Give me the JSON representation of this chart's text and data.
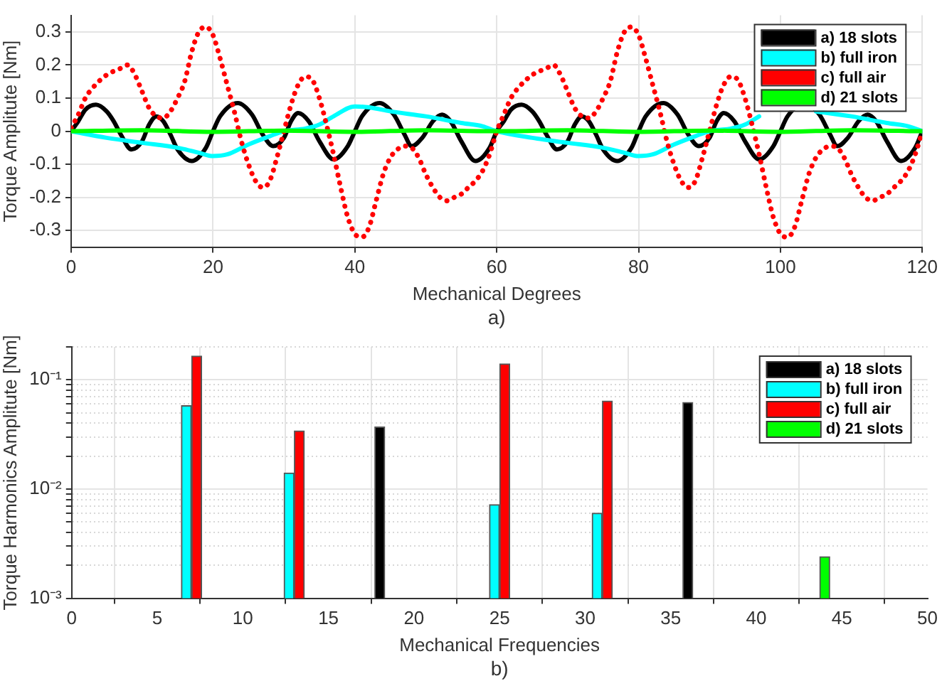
{
  "chart_data": [
    {
      "type": "line",
      "xlabel": "Mechanical Degrees",
      "ylabel": "Torque Amplitute [Nm]",
      "annotations": [
        "a)"
      ],
      "xlim": [
        0,
        120
      ],
      "xticks": [
        0,
        20,
        40,
        60,
        80,
        100,
        120
      ],
      "ylim": [
        -0.35,
        0.35
      ],
      "yticks": [
        -0.3,
        -0.2,
        -0.1,
        0,
        0.1,
        0.2,
        0.3
      ],
      "grid": true,
      "legend": "top right",
      "marker": "none",
      "series": [
        {
          "name": "a) 18 slots",
          "color": "#000000",
          "x": [
            0,
            1,
            2,
            3.5,
            5,
            6,
            7,
            8.5,
            10,
            11,
            12,
            13,
            14,
            15,
            17,
            19,
            20,
            21,
            23.5,
            25.5,
            27,
            28.5,
            30,
            31,
            32,
            33.5,
            35,
            37,
            39,
            40,
            41,
            43.5,
            45.5,
            47,
            48,
            49.5,
            51,
            52.3,
            53.5,
            55,
            57,
            59,
            60,
            61,
            62,
            63.5,
            65,
            66,
            67,
            68.5,
            70,
            71,
            72,
            73,
            74,
            75,
            77,
            79,
            80,
            81,
            83.5,
            85.5,
            87,
            88.5,
            90,
            91,
            92,
            93.5,
            95,
            97,
            99,
            100,
            101,
            103.5,
            105.5,
            107,
            108,
            109.5,
            111,
            112.3,
            113.5,
            115,
            117,
            119,
            120
          ],
          "values": [
            0,
            0.03,
            0.065,
            0.08,
            0.06,
            0.03,
            -0.01,
            -0.055,
            -0.03,
            0.02,
            0.045,
            0.03,
            -0.01,
            -0.055,
            -0.09,
            -0.05,
            0,
            0.045,
            0.085,
            0.05,
            -0.01,
            -0.045,
            -0.02,
            0.03,
            0.055,
            0.03,
            -0.03,
            -0.085,
            -0.045,
            0,
            0.045,
            0.085,
            0.05,
            -0.01,
            -0.045,
            -0.02,
            0.03,
            0.05,
            0.03,
            -0.03,
            -0.09,
            -0.05,
            0,
            0.03,
            0.065,
            0.08,
            0.06,
            0.03,
            -0.01,
            -0.055,
            -0.03,
            0.02,
            0.045,
            0.03,
            -0.01,
            -0.055,
            -0.09,
            -0.05,
            0,
            0.045,
            0.085,
            0.05,
            -0.01,
            -0.045,
            -0.02,
            0.03,
            0.055,
            0.03,
            -0.03,
            -0.085,
            -0.045,
            0,
            0.045,
            0.085,
            0.05,
            -0.01,
            -0.045,
            -0.02,
            0.03,
            0.05,
            0.03,
            -0.03,
            -0.09,
            -0.05,
            0
          ]
        },
        {
          "name": "b) full iron",
          "color": "#00ffff",
          "x": [
            0,
            5,
            10,
            15,
            18,
            20,
            22,
            25,
            28,
            30,
            33,
            35,
            37,
            40,
            42,
            45,
            50,
            55,
            58,
            60,
            65,
            70,
            75,
            78,
            80,
            82,
            85,
            88,
            90,
            93,
            95,
            97,
            100,
            102,
            105,
            110,
            115,
            118,
            120
          ],
          "values": [
            0,
            -0.02,
            -0.035,
            -0.05,
            -0.065,
            -0.075,
            -0.07,
            -0.04,
            -0.015,
            0,
            0.008,
            0.02,
            0.045,
            0.075,
            0.072,
            0.06,
            0.045,
            0.025,
            0.015,
            0,
            -0.02,
            -0.035,
            -0.05,
            -0.065,
            -0.075,
            -0.07,
            -0.04,
            -0.015,
            0,
            0.008,
            0.02,
            0.045,
            null,
            null,
            0.06,
            0.045,
            0.025,
            0.015,
            0
          ]
        },
        {
          "name": "c) full air",
          "color": "#ff0000",
          "line_style": "dotted",
          "x": [
            0,
            1,
            2,
            3,
            5,
            7,
            8,
            9,
            10,
            11,
            12,
            13,
            14,
            15,
            16,
            17,
            18,
            19,
            20,
            21,
            22,
            23,
            24,
            25,
            26,
            27,
            28,
            29,
            30,
            31,
            32,
            33,
            34,
            35,
            36,
            37,
            38,
            39,
            40,
            41,
            42,
            43,
            44,
            45,
            46,
            47,
            48,
            49,
            50,
            51,
            52,
            53,
            54,
            55,
            56,
            57,
            58,
            59,
            60,
            61,
            62,
            63,
            65,
            67,
            68,
            69,
            70,
            71,
            72,
            73,
            74,
            75,
            76,
            77,
            78,
            79,
            80,
            81,
            82,
            83,
            84,
            85,
            86,
            87,
            88,
            89,
            90,
            91,
            92,
            93,
            94,
            95,
            96,
            97,
            98,
            99,
            100,
            101,
            102,
            103,
            104,
            105,
            106,
            107,
            108,
            109,
            110,
            111,
            112,
            113,
            114,
            115,
            116,
            117,
            118,
            119,
            120
          ],
          "values": [
            0.01,
            0.05,
            0.1,
            0.13,
            0.17,
            0.19,
            0.2,
            0.17,
            0.12,
            0.07,
            0.045,
            0.04,
            0.06,
            0.1,
            0.15,
            0.24,
            0.3,
            0.315,
            0.29,
            0.22,
            0.14,
            0.06,
            -0.03,
            -0.1,
            -0.15,
            -0.17,
            -0.15,
            -0.08,
            0,
            0.08,
            0.14,
            0.165,
            0.155,
            0.1,
            0.02,
            -0.07,
            -0.17,
            -0.26,
            -0.31,
            -0.32,
            -0.29,
            -0.21,
            -0.13,
            -0.08,
            -0.055,
            -0.045,
            -0.05,
            -0.08,
            -0.13,
            -0.17,
            -0.2,
            -0.21,
            -0.2,
            -0.19,
            -0.17,
            -0.15,
            -0.12,
            -0.07,
            0,
            0.05,
            0.1,
            0.13,
            0.17,
            0.19,
            0.2,
            0.17,
            0.12,
            0.07,
            0.045,
            0.04,
            0.06,
            0.1,
            0.15,
            0.24,
            0.3,
            0.315,
            0.29,
            0.22,
            0.14,
            0.06,
            -0.03,
            -0.1,
            -0.15,
            -0.17,
            -0.15,
            -0.08,
            0,
            0.08,
            0.14,
            0.165,
            0.155,
            0.1,
            0.02,
            -0.07,
            -0.17,
            -0.26,
            -0.31,
            -0.32,
            -0.29,
            -0.21,
            -0.13,
            -0.08,
            -0.055,
            -0.045,
            -0.05,
            -0.08,
            -0.13,
            -0.17,
            -0.2,
            -0.21,
            -0.2,
            -0.19,
            -0.17,
            -0.15,
            -0.12,
            -0.07,
            0
          ]
        },
        {
          "name": "d) 21 slots",
          "color": "#00ff00",
          "x": [
            0,
            10,
            20,
            30,
            40,
            50,
            60,
            70,
            80,
            90,
            100,
            110,
            120
          ],
          "values": [
            0,
            0.003,
            -0.002,
            0.002,
            -0.002,
            0.003,
            0,
            0.003,
            -0.002,
            0.002,
            -0.002,
            0.003,
            0
          ]
        }
      ]
    },
    {
      "type": "bar",
      "xlabel": "Mechanical Frequencies",
      "ylabel": "Torque Harmonics Amplitute [Nm]",
      "annotations": [
        "b)"
      ],
      "log": "y",
      "xlim": [
        0,
        50
      ],
      "xticks": [
        0,
        5,
        10,
        15,
        20,
        25,
        30,
        35,
        40,
        45,
        50
      ],
      "ylim": [
        0.001,
        0.2
      ],
      "yticks": [
        {
          "value": 0.001,
          "label": "10⁻³"
        },
        {
          "value": 0.002,
          "label": null
        },
        {
          "value": 0.003,
          "label": null
        },
        {
          "value": 0.004,
          "label": null
        },
        {
          "value": 0.005,
          "label": null
        },
        {
          "value": 0.006,
          "label": null
        },
        {
          "value": 0.007,
          "label": null
        },
        {
          "value": 0.008,
          "label": null
        },
        {
          "value": 0.009,
          "label": null
        },
        {
          "value": 0.01,
          "label": "10⁻²"
        },
        {
          "value": 0.02,
          "label": null
        },
        {
          "value": 0.03,
          "label": null
        },
        {
          "value": 0.04,
          "label": null
        },
        {
          "value": 0.05,
          "label": null
        },
        {
          "value": 0.06,
          "label": null
        },
        {
          "value": 0.07,
          "label": null
        },
        {
          "value": 0.08,
          "label": null
        },
        {
          "value": 0.09,
          "label": null
        },
        {
          "value": 0.1,
          "label": "10⁻¹"
        },
        {
          "value": 0.2,
          "label": null
        }
      ],
      "grid": true,
      "legend": "top right",
      "series": [
        {
          "name": "a) 18 slots",
          "color": "#000000",
          "x": [
            18,
            36
          ],
          "values": [
            0.037,
            0.062
          ]
        },
        {
          "name": "b) full iron",
          "color": "#00ffff",
          "x": [
            6.7,
            12.7,
            24.7,
            30.7
          ],
          "values": [
            0.058,
            0.014,
            0.0072,
            0.006
          ]
        },
        {
          "name": "c) full air",
          "color": "#ff0000",
          "x": [
            7.3,
            13.3,
            25.3,
            31.3
          ],
          "values": [
            0.165,
            0.034,
            0.14,
            0.064
          ]
        },
        {
          "name": "d) 21 slots",
          "color": "#00ff00",
          "x": [
            44
          ],
          "values": [
            0.0024
          ]
        }
      ]
    }
  ]
}
